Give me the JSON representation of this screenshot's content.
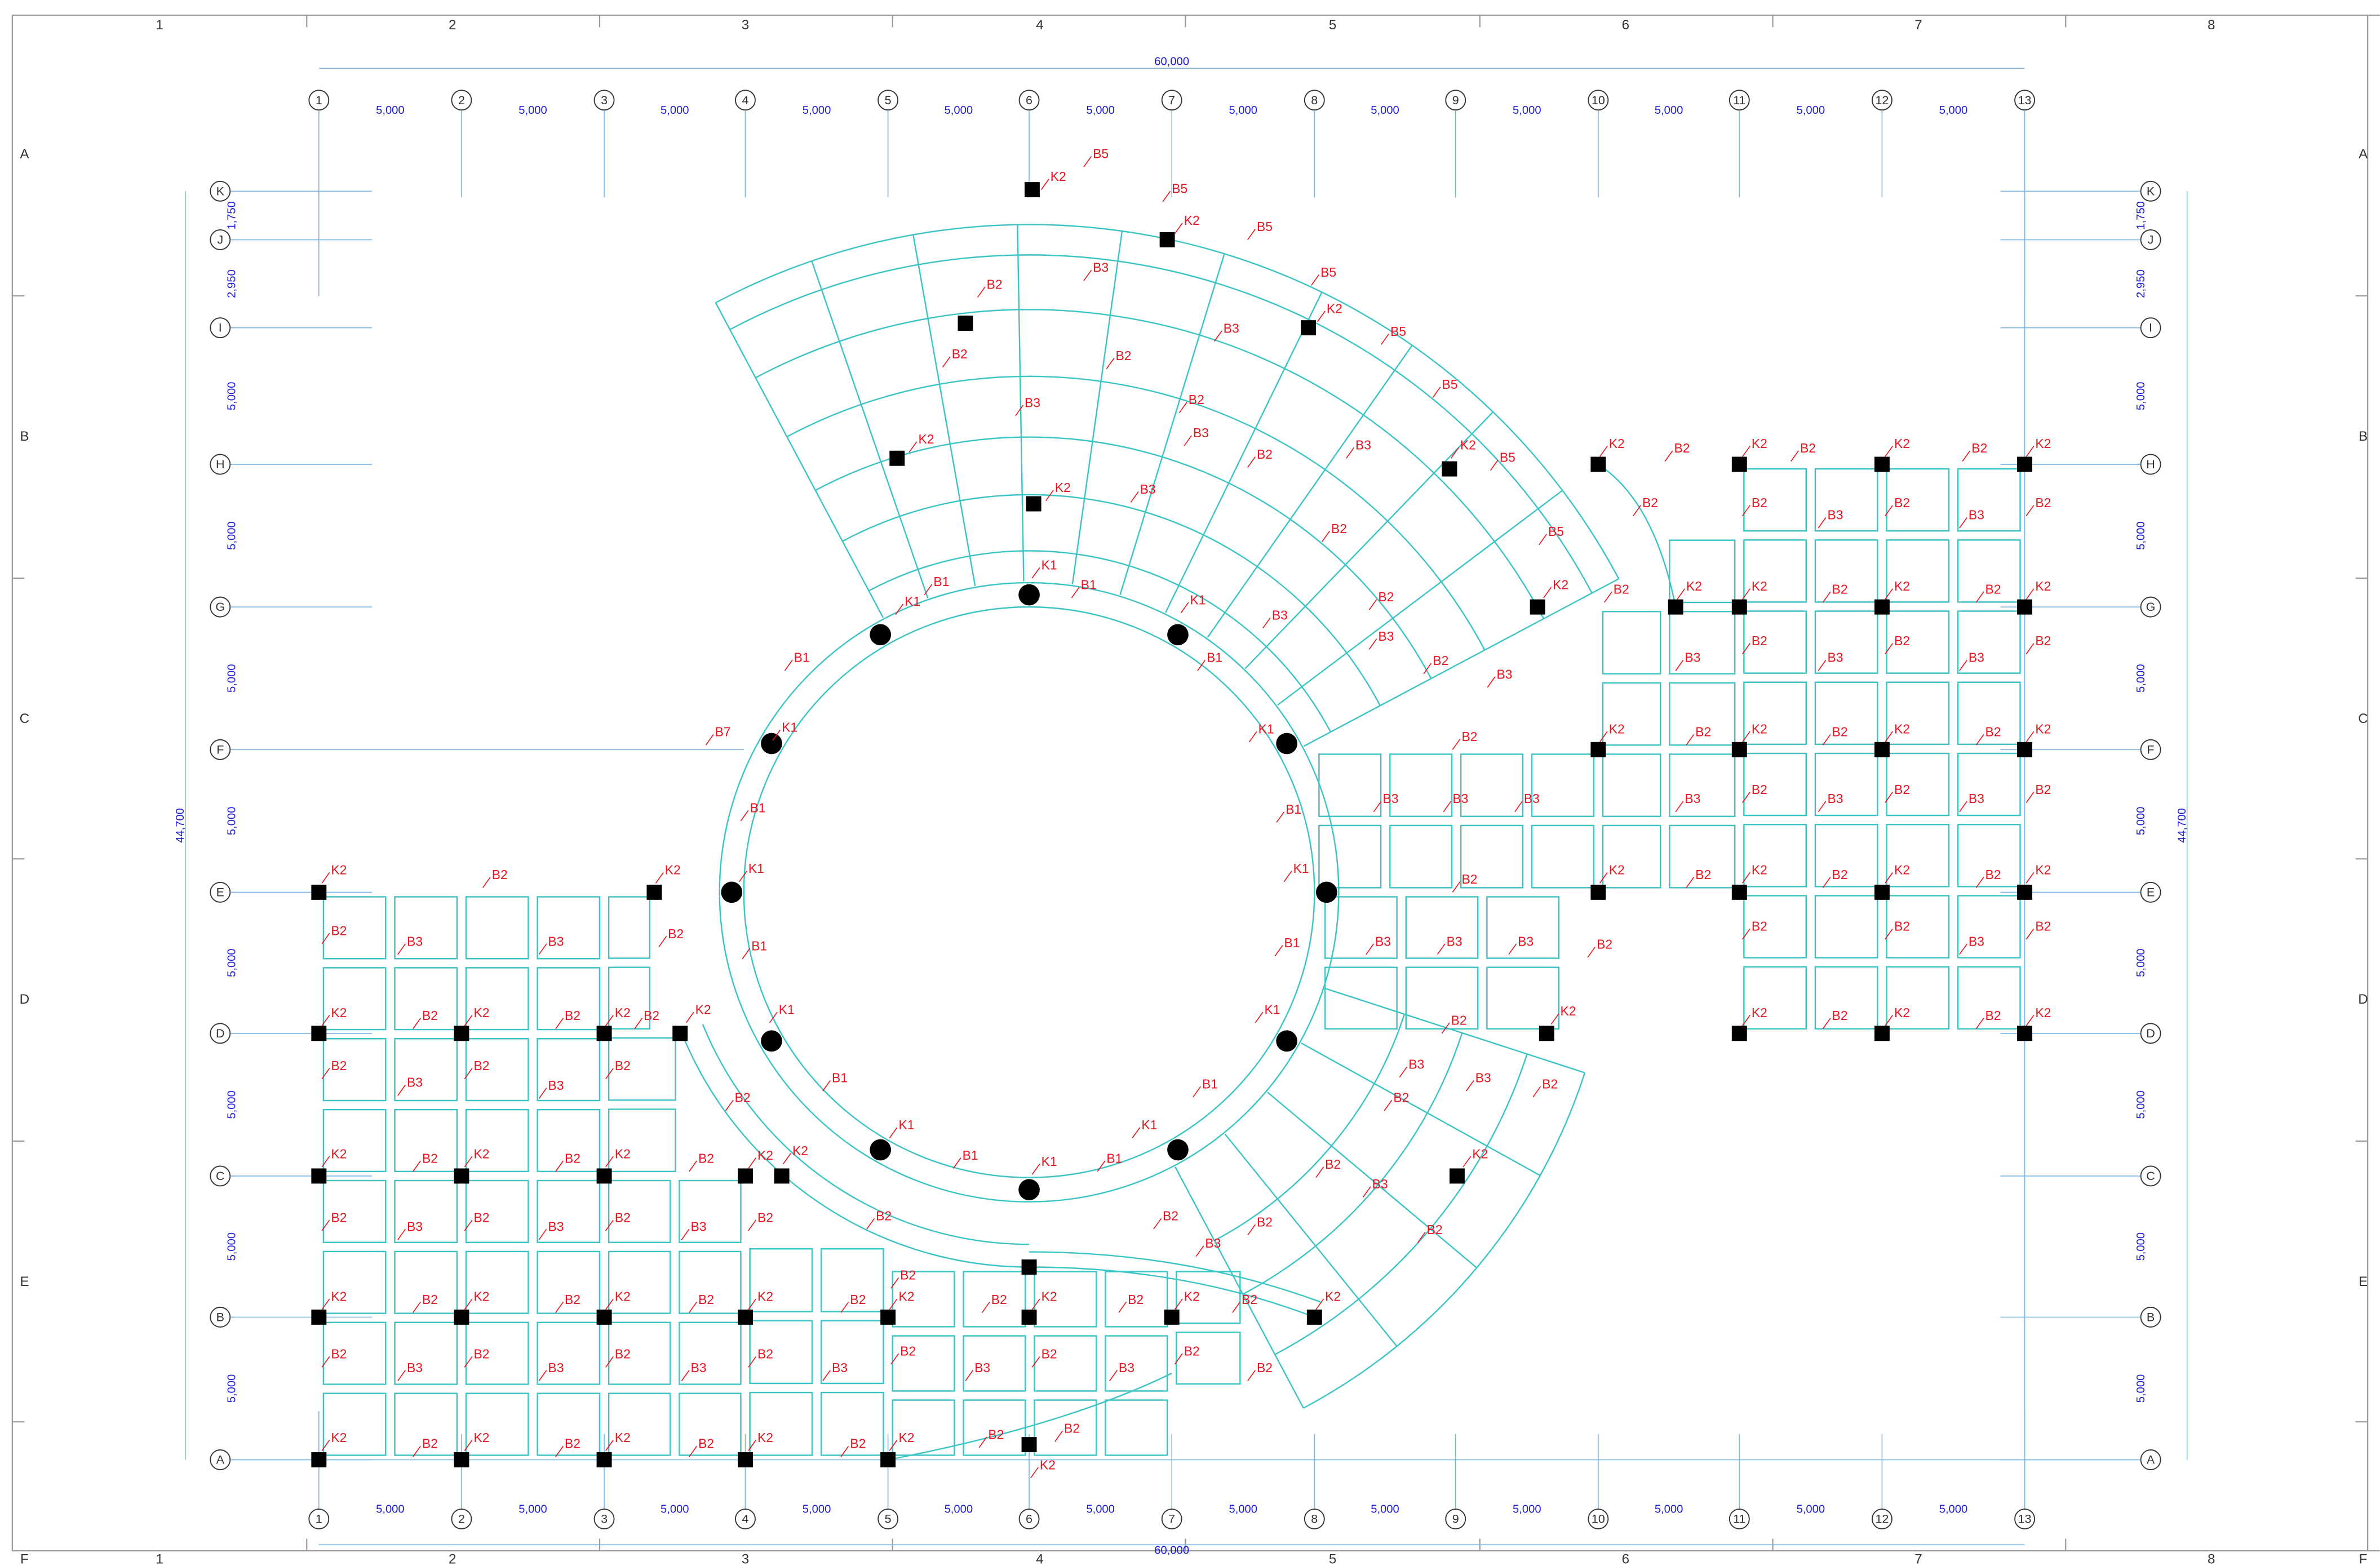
{
  "border_top": [
    "1",
    "2",
    "3",
    "4",
    "5",
    "6",
    "7",
    "8"
  ],
  "border_bottom": [
    "1",
    "2",
    "3",
    "4",
    "5",
    "6",
    "7",
    "8"
  ],
  "border_left": [
    "A",
    "B",
    "C",
    "D",
    "E",
    "F"
  ],
  "border_right": [
    "A",
    "B",
    "C",
    "D",
    "E",
    "F"
  ],
  "grid_x_top": [
    "1",
    "2",
    "3",
    "4",
    "5",
    "6",
    "7",
    "8",
    "9",
    "10",
    "11",
    "12",
    "13"
  ],
  "grid_x_bottom": [
    "1",
    "2",
    "3",
    "4",
    "5",
    "6",
    "7",
    "8",
    "9",
    "10",
    "11",
    "12",
    "13"
  ],
  "grid_y_left": [
    "K",
    "J",
    "I",
    "H",
    "G",
    "F",
    "E",
    "D",
    "C",
    "B",
    "A"
  ],
  "grid_y_right": [
    "K",
    "J",
    "I",
    "H",
    "G",
    "F",
    "E",
    "D",
    "C",
    "B",
    "A"
  ],
  "top_total": "60,000",
  "bottom_total": "60,000",
  "left_total": "44,700",
  "right_total": "44,700",
  "top_bays": [
    "5,000",
    "5,000",
    "5,000",
    "5,000",
    "5,000",
    "5,000",
    "5,000",
    "5,000",
    "5,000",
    "5,000",
    "5,000",
    "5,000"
  ],
  "bottom_bays": [
    "5,000",
    "5,000",
    "5,000",
    "5,000",
    "5,000",
    "5,000",
    "5,000",
    "5,000",
    "5,000",
    "5,000",
    "5,000",
    "5,000"
  ],
  "left_bays": [
    "1,750",
    "2,950",
    "5,000",
    "5,000",
    "5,000",
    "5,000",
    "5,000",
    "5,000",
    "5,000",
    "5,000"
  ],
  "right_bays": [
    "1,750",
    "2,950",
    "5,000",
    "5,000",
    "5,000",
    "5,000",
    "5,000",
    "5,000",
    "5,000",
    "5,000"
  ],
  "member_labels": {
    "fan": [
      "K2",
      "B5",
      "B5",
      "K2",
      "B5",
      "B5",
      "K2",
      "B5",
      "B5",
      "K2",
      "B5",
      "B5",
      "K2",
      "B2",
      "B3",
      "B3",
      "B2",
      "B2",
      "B3",
      "B2",
      "K2",
      "B3",
      "B2",
      "K2",
      "B3",
      "B3",
      "B2"
    ],
    "ring": [
      "K1",
      "B1",
      "B1",
      "K1",
      "K1",
      "B2",
      "B3",
      "B3",
      "B1",
      "B2",
      "B3",
      "K1",
      "B2",
      "B1",
      "K1",
      "B7",
      "B1",
      "B1",
      "K1",
      "K1",
      "B1",
      "B1",
      "K1",
      "K1",
      "B1",
      "B1",
      "K1",
      "K1",
      "B1",
      "K1",
      "B1"
    ],
    "mid": [
      "B3",
      "B3",
      "B3",
      "B2",
      "B3",
      "B3",
      "B3",
      "B2",
      "K2",
      "B2",
      "B3",
      "B3",
      "B2",
      "B2",
      "K2",
      "B2",
      "B3",
      "B2",
      "B2",
      "B2",
      "B3",
      "K2",
      "B2",
      "B2"
    ],
    "right": [
      "K2",
      "B2",
      "K2",
      "B2",
      "K2",
      "B2",
      "K2",
      "B2",
      "B2",
      "B3",
      "B2",
      "B3",
      "B2",
      "B2",
      "K2",
      "K2",
      "B2",
      "K2",
      "B2",
      "K2",
      "B3",
      "B2",
      "B3",
      "B2",
      "B3",
      "B2",
      "K2",
      "B2",
      "K2",
      "B2",
      "K2",
      "B2",
      "K2",
      "B3",
      "B2",
      "B3",
      "B2",
      "B3",
      "B2",
      "K2",
      "B2",
      "K2",
      "B2",
      "K2",
      "B2",
      "K2",
      "B2",
      "B2",
      "B3",
      "B2",
      "K2",
      "B2",
      "K2",
      "B2",
      "K2"
    ],
    "left": [
      "K2",
      "B2",
      "K2",
      "B2",
      "B3",
      "B3",
      "B2",
      "K2",
      "B2",
      "K2",
      "B2",
      "K2",
      "B2",
      "K2",
      "B2",
      "B3",
      "B2",
      "B3",
      "B2",
      "B2",
      "K2",
      "B2",
      "K2",
      "B2",
      "K2",
      "B2",
      "K2",
      "K2",
      "B2",
      "B3",
      "B2",
      "B3",
      "B2",
      "B3",
      "B2",
      "B2",
      "K2",
      "B2",
      "K2",
      "B2",
      "K2",
      "B2",
      "K2",
      "B2",
      "K2",
      "B2",
      "B2",
      "K2",
      "B2",
      "K2",
      "B2",
      "B3",
      "B2",
      "B3",
      "B2",
      "B3",
      "B2",
      "B3",
      "B2",
      "B3",
      "B2",
      "B3",
      "B2",
      "K2",
      "B2",
      "K2",
      "B2",
      "K2",
      "B2",
      "K2",
      "B2",
      "K2",
      "B2",
      "B2",
      "K2"
    ]
  }
}
